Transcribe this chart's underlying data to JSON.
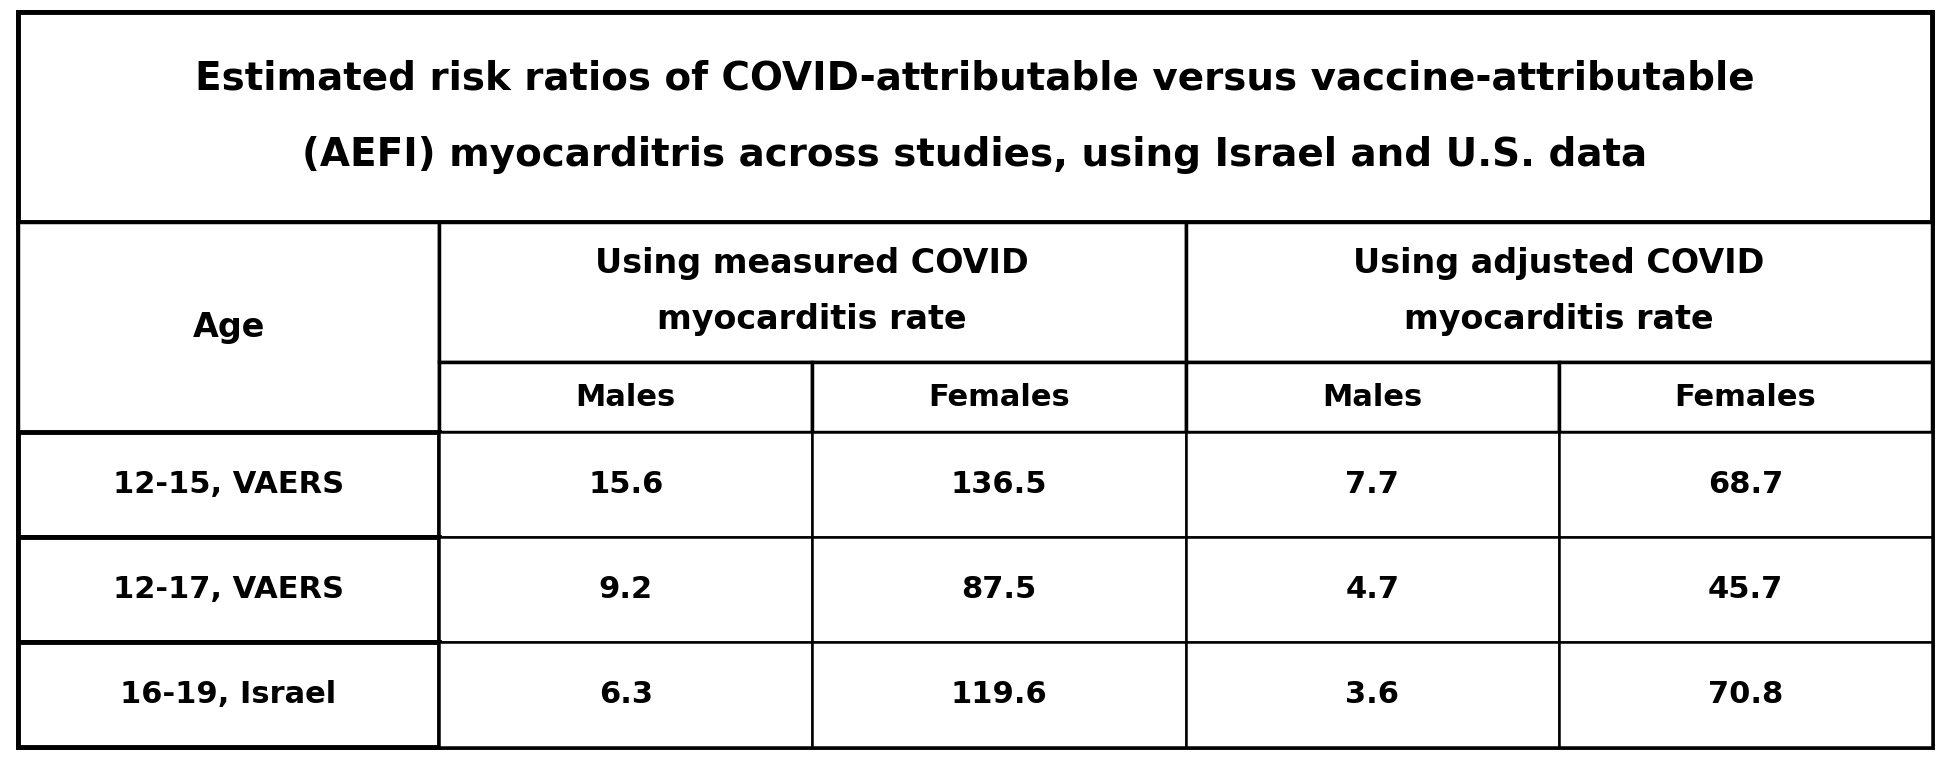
{
  "title_line1": "Estimated risk ratios of COVID-attributable versus vaccine-attributable",
  "title_line2": "(AEFI) myocarditris across studies, using Israel and U.S. data",
  "col_header1_line1": "Using measured COVID",
  "col_header1_line2": "myocarditis rate",
  "col_header2_line1": "Using adjusted COVID",
  "col_header2_line2": "myocarditis rate",
  "sub_headers": [
    "Males",
    "Females",
    "Males",
    "Females"
  ],
  "row_labels": [
    "12-15, VAERS",
    "12-17, VAERS",
    "16-19, Israel"
  ],
  "data": [
    [
      "15.6",
      "136.5",
      "7.7",
      "68.7"
    ],
    [
      "9.2",
      "87.5",
      "4.7",
      "45.7"
    ],
    [
      "6.3",
      "119.6",
      "3.6",
      "70.8"
    ]
  ],
  "age_col_header": "Age",
  "bg_color": "#ffffff",
  "border_color": "#000000",
  "text_color": "#000000",
  "fig_width": 19.5,
  "fig_height": 7.59,
  "dpi": 100
}
